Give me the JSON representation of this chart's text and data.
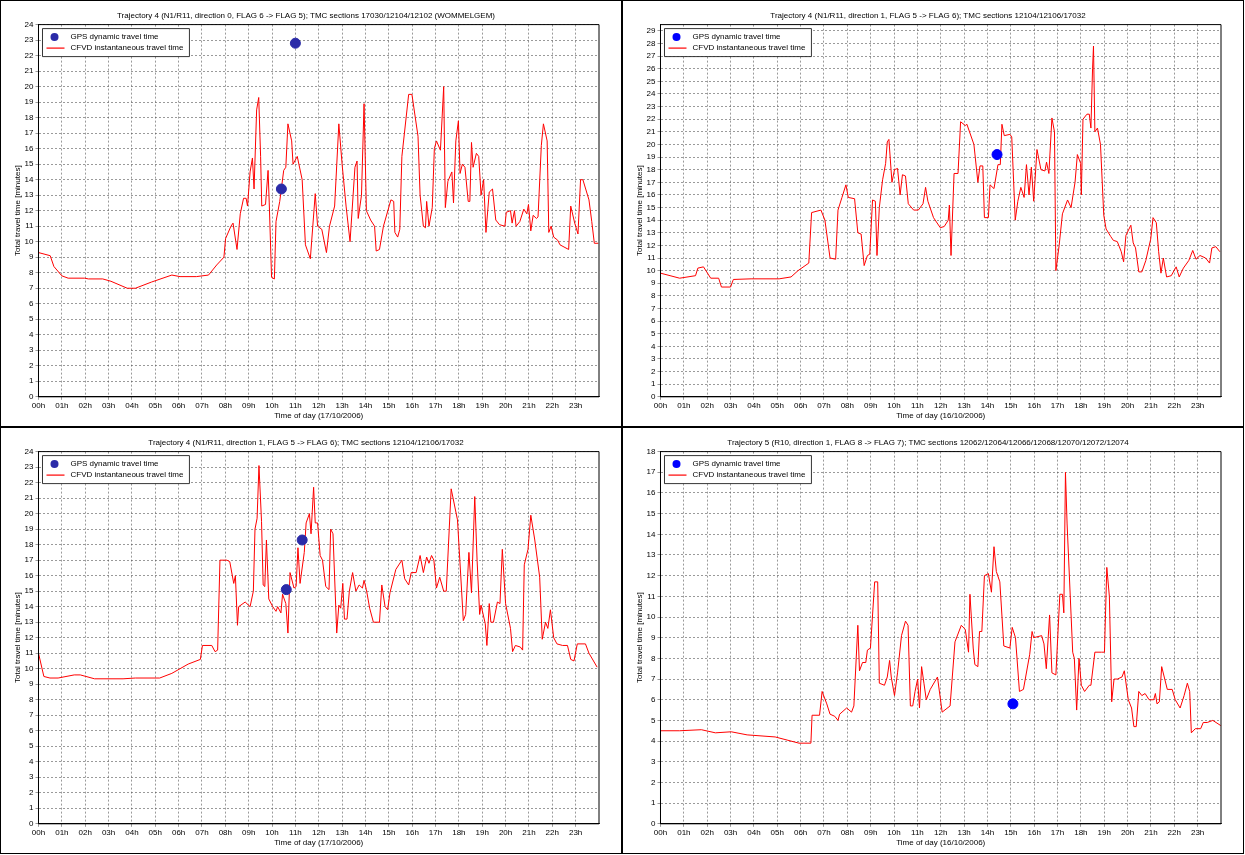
{
  "chart_data": [
    {
      "type": "line",
      "title": "Trajectory 4 (N1/R11, direction 0, FLAG 6 -> FLAG 5); TMC sections 17030/12104/12102 (WOMMELGEM)",
      "xlabel": "Time of day (17/10/2006)",
      "ylabel": "Total travel time [minutes]",
      "xlim": [
        0,
        24
      ],
      "xticks": [
        {
          "value": 0,
          "label": "00h"
        },
        {
          "value": 1,
          "label": "01h"
        },
        {
          "value": 2,
          "label": "02h"
        },
        {
          "value": 3,
          "label": "03h"
        },
        {
          "value": 4,
          "label": "04h"
        },
        {
          "value": 5,
          "label": "05h"
        },
        {
          "value": 6,
          "label": "06h"
        },
        {
          "value": 7,
          "label": "07h"
        },
        {
          "value": 8,
          "label": "08h"
        },
        {
          "value": 9,
          "label": "09h"
        },
        {
          "value": 10,
          "label": "10h"
        },
        {
          "value": 11,
          "label": "11h"
        },
        {
          "value": 12,
          "label": "12h"
        },
        {
          "value": 13,
          "label": "13h"
        },
        {
          "value": 14,
          "label": "14h"
        },
        {
          "value": 15,
          "label": "15h"
        },
        {
          "value": 16,
          "label": "16h"
        },
        {
          "value": 17,
          "label": "17h"
        },
        {
          "value": 18,
          "label": "18h"
        },
        {
          "value": 19,
          "label": "19h"
        },
        {
          "value": 20,
          "label": "20h"
        },
        {
          "value": 21,
          "label": "21h"
        },
        {
          "value": 22,
          "label": "22h"
        },
        {
          "value": 23,
          "label": "23h"
        }
      ],
      "ylim": [
        0,
        24
      ],
      "yticks": [
        0,
        1,
        2,
        3,
        4,
        5,
        6,
        7,
        8,
        9,
        10,
        11,
        12,
        13,
        14,
        15,
        16,
        17,
        18,
        19,
        20,
        21,
        22,
        23,
        24
      ],
      "grid": true,
      "legend": "top left",
      "series": [
        {
          "name": "GPS dynamic travel time",
          "type": "scatter",
          "marker": "circle",
          "color": "#2b2ba8",
          "x": [
            10.4,
            11.0
          ],
          "values": [
            13.4,
            22.8
          ]
        },
        {
          "name": "CFVD instantaneous travel time",
          "type": "line",
          "marker": "none",
          "line_style": "solid",
          "color": "#ff0000",
          "x": [
            0,
            0.5,
            0.66,
            1.0,
            1.27,
            1.97,
            2.14,
            2.75,
            3.1,
            3.8,
            4.15,
            4.84,
            5.71,
            6.06,
            6.76,
            7.28,
            7.63,
            7.94,
            8.01,
            8.24,
            8.33,
            8.5,
            8.64,
            8.78,
            8.89,
            8.95,
            9.06,
            9.16,
            9.23,
            9.34,
            9.43,
            9.51,
            9.56,
            9.72,
            9.83,
            9.88,
            9.98,
            10.1,
            10.17,
            10.33,
            10.5,
            10.59,
            10.68,
            10.84,
            10.9,
            11.08,
            11.29,
            11.43,
            11.64,
            11.85,
            11.95,
            12.13,
            12.33,
            12.46,
            12.68,
            12.86,
            13.0,
            13.17,
            13.34,
            13.55,
            13.64,
            13.69,
            13.83,
            13.94,
            14.04,
            14.22,
            14.39,
            14.46,
            14.6,
            14.77,
            15.09,
            15.21,
            15.26,
            15.38,
            15.47,
            15.56,
            15.85,
            15.99,
            16.25,
            16.34,
            16.48,
            16.57,
            16.62,
            16.72,
            16.86,
            16.95,
            17.04,
            17.21,
            17.35,
            17.42,
            17.53,
            17.7,
            17.77,
            17.87,
            17.98,
            18.05,
            18.15,
            18.26,
            18.4,
            18.47,
            18.54,
            18.61,
            18.75,
            18.85,
            18.95,
            19.06,
            19.16,
            19.3,
            19.44,
            19.58,
            19.74,
            19.97,
            20.03,
            20.21,
            20.28,
            20.38,
            20.45,
            20.61,
            20.78,
            20.91,
            20.98,
            21.08,
            21.18,
            21.32,
            21.39,
            21.53,
            21.62,
            21.78,
            21.85,
            21.95,
            22.06,
            22.23,
            22.33,
            22.7,
            22.79,
            22.96,
            23.1,
            23.21,
            23.31,
            23.57,
            23.69,
            23.8,
            23.97
          ],
          "values": [
            9.3,
            9.1,
            8.4,
            7.8,
            7.65,
            7.65,
            7.6,
            7.6,
            7.45,
            7,
            7,
            7.4,
            7.85,
            7.75,
            7.75,
            7.85,
            8.5,
            9,
            10.2,
            11,
            11.2,
            9.5,
            11.8,
            12.8,
            12.8,
            12.3,
            14.5,
            15.4,
            13.4,
            18.5,
            19.3,
            15.5,
            12.3,
            12.4,
            14.6,
            12.5,
            7.7,
            7.6,
            11.3,
            12.6,
            14.6,
            14.8,
            17.6,
            16.5,
            15,
            15.5,
            14,
            9.8,
            8.9,
            13.1,
            11,
            10.8,
            9.3,
            11,
            12.3,
            17.6,
            15,
            12.3,
            10,
            14.8,
            15.2,
            11.5,
            13,
            18.9,
            12,
            11.4,
            11,
            9.4,
            9.5,
            11,
            12.7,
            12.6,
            10.6,
            10.3,
            10.8,
            15.5,
            19.5,
            19.5,
            16.8,
            13,
            11,
            10.9,
            12.6,
            11,
            12.2,
            16,
            16.5,
            15.9,
            20,
            12.2,
            13.9,
            14.5,
            12.5,
            16.5,
            17.8,
            14.4,
            15,
            14.8,
            12.6,
            12.6,
            16.4,
            14.8,
            15.7,
            15.5,
            13,
            14,
            10.6,
            13.2,
            13.4,
            11.4,
            11.1,
            11,
            11.9,
            12,
            11.2,
            12,
            11,
            11.3,
            12.1,
            11.8,
            12.4,
            10.7,
            11.7,
            11.5,
            11.6,
            16.2,
            17.6,
            16.5,
            10.6,
            11,
            10.3,
            10.1,
            9.8,
            9.5,
            12.3,
            11.2,
            10.5,
            14,
            14,
            12.7,
            11.3,
            9.9,
            9.9
          ]
        }
      ]
    },
    {
      "type": "line",
      "title": "Trajectory 4 (N1/R11, direction 1, FLAG 5 -> FLAG 6); TMC sections 12104/12106/17032",
      "xlabel": "Time of day (16/10/2006)",
      "ylabel": "Total travel time [minutes]",
      "xlim": [
        0,
        24
      ],
      "xticks": [
        {
          "value": 0,
          "label": "00h"
        },
        {
          "value": 1,
          "label": "01h"
        },
        {
          "value": 2,
          "label": "02h"
        },
        {
          "value": 3,
          "label": "03h"
        },
        {
          "value": 4,
          "label": "04h"
        },
        {
          "value": 5,
          "label": "05h"
        },
        {
          "value": 6,
          "label": "06h"
        },
        {
          "value": 7,
          "label": "07h"
        },
        {
          "value": 8,
          "label": "08h"
        },
        {
          "value": 9,
          "label": "09h"
        },
        {
          "value": 10,
          "label": "10h"
        },
        {
          "value": 11,
          "label": "11h"
        },
        {
          "value": 12,
          "label": "12h"
        },
        {
          "value": 13,
          "label": "13h"
        },
        {
          "value": 14,
          "label": "14h"
        },
        {
          "value": 15,
          "label": "15h"
        },
        {
          "value": 16,
          "label": "16h"
        },
        {
          "value": 17,
          "label": "17h"
        },
        {
          "value": 18,
          "label": "18h"
        },
        {
          "value": 19,
          "label": "19h"
        },
        {
          "value": 20,
          "label": "20h"
        },
        {
          "value": 21,
          "label": "21h"
        },
        {
          "value": 22,
          "label": "22h"
        },
        {
          "value": 23,
          "label": "23h"
        }
      ],
      "ylim": [
        0,
        29.5
      ],
      "yticks": [
        0,
        1,
        2,
        3,
        4,
        5,
        6,
        7,
        8,
        9,
        10,
        11,
        12,
        13,
        14,
        15,
        16,
        17,
        18,
        19,
        20,
        21,
        22,
        23,
        24,
        25,
        26,
        27,
        28,
        29
      ],
      "grid": true,
      "legend": "top left",
      "series": [
        {
          "name": "GPS dynamic travel time",
          "type": "scatter",
          "marker": "circle",
          "color": "#0000ff",
          "x": [
            14.41
          ],
          "values": [
            19.2
          ]
        },
        {
          "name": "CFVD instantaneous travel time",
          "type": "line",
          "marker": "none",
          "line_style": "solid",
          "color": "#ff0000",
          "x": [
            0,
            0.82,
            1.5,
            1.6,
            1.84,
            2.15,
            2.49,
            2.61,
            3.0,
            3.12,
            3.88,
            5.08,
            5.59,
            5.89,
            6.35,
            6.47,
            6.87,
            7.04,
            7.26,
            7.5,
            7.6,
            7.77,
            7.94,
            8.04,
            8.31,
            8.45,
            8.59,
            8.72,
            8.86,
            8.96,
            9.08,
            9.2,
            9.27,
            9.37,
            9.51,
            9.64,
            9.71,
            9.78,
            9.91,
            10.02,
            10.15,
            10.26,
            10.36,
            10.49,
            10.61,
            10.84,
            11.04,
            11.24,
            11.35,
            11.45,
            11.69,
            11.98,
            12.15,
            12.32,
            12.37,
            12.44,
            12.57,
            12.74,
            12.85,
            13.05,
            13.12,
            13.42,
            13.59,
            13.68,
            13.8,
            13.87,
            14.04,
            14.11,
            14.28,
            14.45,
            14.55,
            14.62,
            14.72,
            14.96,
            15.04,
            15.19,
            15.3,
            15.43,
            15.57,
            15.67,
            15.78,
            15.88,
            15.98,
            16.12,
            16.29,
            16.46,
            16.53,
            16.63,
            16.76,
            16.87,
            16.93,
            17.07,
            17.21,
            17.43,
            17.58,
            17.75,
            17.85,
            17.99,
            18.02,
            18.09,
            18.26,
            18.36,
            18.43,
            18.5,
            18.54,
            18.6,
            18.71,
            18.84,
            18.98,
            19.08,
            19.28,
            19.39,
            19.56,
            19.73,
            19.83,
            19.93,
            20.14,
            20.24,
            20.34,
            20.48,
            20.61,
            20.78,
            20.99,
            21.09,
            21.23,
            21.33,
            21.43,
            21.53,
            21.67,
            21.87,
            22.08,
            22.21,
            22.39,
            22.62,
            22.79,
            22.93,
            23.1,
            23.34,
            23.51,
            23.61,
            23.78,
            23.95
          ],
          "values": [
            9.8,
            9.4,
            9.6,
            10.2,
            10.3,
            9.4,
            9.4,
            8.7,
            8.7,
            9.3,
            9.35,
            9.35,
            9.5,
            10,
            10.6,
            14.6,
            14.8,
            14,
            11,
            10.9,
            14.8,
            15.8,
            16.8,
            15.8,
            15.7,
            13,
            12.9,
            10.4,
            11.2,
            11.3,
            15.6,
            15.5,
            11.2,
            15,
            17.2,
            18.5,
            20.2,
            20.4,
            17,
            18,
            18.1,
            16,
            17.6,
            17.5,
            15.3,
            14.8,
            14.8,
            15.3,
            16.6,
            15.5,
            14.2,
            13.4,
            13.5,
            14,
            15.2,
            11.2,
            17.7,
            17.7,
            21.8,
            21.5,
            21.6,
            20,
            17,
            18.3,
            18.3,
            14.2,
            14.2,
            16.8,
            16.5,
            18.4,
            18.4,
            21.6,
            20.7,
            20.8,
            20.6,
            14,
            15.5,
            16.6,
            15.8,
            18.4,
            16,
            18.2,
            15.5,
            19.6,
            18,
            17.9,
            18.6,
            17.7,
            22.1,
            21,
            10,
            12,
            14.5,
            15.6,
            15,
            17,
            19.2,
            18.5,
            16,
            22,
            22.4,
            22.4,
            21.3,
            26,
            27.8,
            21,
            21.3,
            20,
            14.4,
            13.3,
            12.7,
            12.4,
            12.3,
            11.5,
            10.7,
            12.8,
            13.6,
            12.2,
            11.8,
            9.9,
            9.9,
            10.8,
            12.5,
            14.2,
            13.8,
            11.5,
            9.8,
            11,
            9.5,
            9.6,
            10.3,
            9.5,
            10.2,
            10.8,
            11.6,
            10.9,
            11.2,
            11,
            10.6,
            11.8,
            11.9,
            11.5
          ]
        }
      ]
    },
    {
      "type": "line",
      "title": "Trajectory 4 (N1/R11, direction 1, FLAG 5 -> FLAG 6); TMC sections 12104/12106/17032",
      "xlabel": "Time of day (17/10/2006)",
      "ylabel": "Total travel time [minutes]",
      "xlim": [
        0,
        24
      ],
      "xticks": [
        {
          "value": 0,
          "label": "00h"
        },
        {
          "value": 1,
          "label": "01h"
        },
        {
          "value": 2,
          "label": "02h"
        },
        {
          "value": 3,
          "label": "03h"
        },
        {
          "value": 4,
          "label": "04h"
        },
        {
          "value": 5,
          "label": "05h"
        },
        {
          "value": 6,
          "label": "06h"
        },
        {
          "value": 7,
          "label": "07h"
        },
        {
          "value": 8,
          "label": "08h"
        },
        {
          "value": 9,
          "label": "09h"
        },
        {
          "value": 10,
          "label": "10h"
        },
        {
          "value": 11,
          "label": "11h"
        },
        {
          "value": 12,
          "label": "12h"
        },
        {
          "value": 13,
          "label": "13h"
        },
        {
          "value": 14,
          "label": "14h"
        },
        {
          "value": 15,
          "label": "15h"
        },
        {
          "value": 16,
          "label": "16h"
        },
        {
          "value": 17,
          "label": "17h"
        },
        {
          "value": 18,
          "label": "18h"
        },
        {
          "value": 19,
          "label": "19h"
        },
        {
          "value": 20,
          "label": "20h"
        },
        {
          "value": 21,
          "label": "21h"
        },
        {
          "value": 22,
          "label": "22h"
        },
        {
          "value": 23,
          "label": "23h"
        }
      ],
      "ylim": [
        0,
        24
      ],
      "yticks": [
        0,
        1,
        2,
        3,
        4,
        5,
        6,
        7,
        8,
        9,
        10,
        11,
        12,
        13,
        14,
        15,
        16,
        17,
        18,
        19,
        20,
        21,
        22,
        23,
        24
      ],
      "grid": true,
      "legend": "top left",
      "series": [
        {
          "name": "GPS dynamic travel time",
          "type": "scatter",
          "marker": "circle",
          "color": "#2b2ba8",
          "x": [
            10.61,
            11.29
          ],
          "values": [
            15.1,
            18.3
          ]
        },
        {
          "name": "CFVD instantaneous travel time",
          "type": "line",
          "marker": "none",
          "line_style": "solid",
          "color": "#ff0000",
          "x": [
            0,
            0.23,
            0.49,
            0.84,
            1.53,
            1.79,
            2.4,
            3.62,
            4.15,
            5.19,
            5.71,
            6.41,
            6.93,
            7.02,
            7.42,
            7.56,
            7.67,
            7.77,
            8.07,
            8.19,
            8.36,
            8.43,
            8.52,
            8.57,
            8.85,
            9.06,
            9.2,
            9.27,
            9.36,
            9.44,
            9.55,
            9.62,
            9.69,
            9.76,
            9.86,
            10.03,
            10.17,
            10.24,
            10.38,
            10.45,
            10.59,
            10.68,
            10.77,
            10.94,
            11.03,
            11.11,
            11.2,
            11.38,
            11.46,
            11.6,
            11.67,
            11.78,
            11.85,
            11.95,
            12.06,
            12.16,
            12.3,
            12.44,
            12.51,
            12.61,
            12.77,
            12.86,
            12.94,
            13.03,
            13.1,
            13.21,
            13.31,
            13.45,
            13.59,
            13.73,
            13.87,
            13.94,
            14.04,
            14.18,
            14.34,
            14.6,
            14.7,
            14.84,
            14.95,
            15.05,
            15.3,
            15.56,
            15.68,
            15.85,
            15.96,
            16.17,
            16.34,
            16.48,
            16.62,
            16.72,
            16.83,
            16.93,
            17.04,
            17.18,
            17.35,
            17.46,
            17.67,
            17.94,
            18.08,
            18.19,
            18.29,
            18.43,
            18.54,
            18.68,
            18.78,
            18.89,
            18.95,
            19.13,
            19.2,
            19.3,
            19.37,
            19.48,
            19.65,
            19.76,
            19.86,
            20.0,
            20.21,
            20.3,
            20.42,
            20.63,
            20.73,
            20.8,
            20.96,
            21.08,
            21.25,
            21.46,
            21.57,
            21.71,
            21.81,
            21.92,
            22.06,
            22.2,
            22.44,
            22.65,
            22.79,
            22.93,
            23.07,
            23.42,
            23.57,
            23.92
          ],
          "values": [
            11,
            9.5,
            9.4,
            9.4,
            9.6,
            9.6,
            9.35,
            9.35,
            9.4,
            9.4,
            9.7,
            10.3,
            10.6,
            11.5,
            11.5,
            11.1,
            11.2,
            17,
            17,
            16.9,
            15.5,
            16,
            12.8,
            14,
            14.3,
            14,
            15,
            19,
            19.7,
            23.1,
            19.5,
            15.4,
            15.3,
            18.3,
            14.5,
            14,
            13.7,
            14,
            13.6,
            14.8,
            14.2,
            12.3,
            16.2,
            15.2,
            15.3,
            17.8,
            15.5,
            17.5,
            19.4,
            20,
            18.7,
            21.7,
            19.4,
            19.4,
            17.3,
            17,
            15.3,
            15.1,
            19,
            18.7,
            12.3,
            14.1,
            13.9,
            15.5,
            13.2,
            13.2,
            15,
            16.2,
            15,
            15.4,
            15.2,
            15.7,
            15.1,
            13.9,
            13,
            13,
            15.4,
            14,
            13.8,
            14.9,
            16.4,
            17,
            15.8,
            15.4,
            16.2,
            16.2,
            17.3,
            16.2,
            17.2,
            16.8,
            17.3,
            17,
            15.2,
            15.9,
            15,
            15,
            21.6,
            19.6,
            16,
            13.1,
            13.5,
            17.5,
            14.9,
            21.1,
            17,
            13.5,
            14.1,
            12.9,
            11.5,
            14.2,
            13,
            13,
            14.3,
            14.2,
            17.7,
            14.2,
            12.6,
            11.1,
            11.5,
            11.4,
            11.2,
            16.7,
            17.7,
            19.9,
            18.3,
            15.9,
            11.9,
            13,
            12.6,
            13.8,
            12,
            11.6,
            11.5,
            11.5,
            10.6,
            10.5,
            11.6,
            11.6,
            11,
            10.1
          ]
        }
      ]
    },
    {
      "type": "line",
      "title": "Trajectory 5 (R10, direction 1, FLAG 8 -> FLAG 7); TMC sections 12062/12064/12066/12068/12070/12072/12074",
      "xlabel": "Time of day (16/10/2006)",
      "ylabel": "Total travel time [minutes]",
      "xlim": [
        0,
        24
      ],
      "xticks": [
        {
          "value": 0,
          "label": "00h"
        },
        {
          "value": 1,
          "label": "01h"
        },
        {
          "value": 2,
          "label": "02h"
        },
        {
          "value": 3,
          "label": "03h"
        },
        {
          "value": 4,
          "label": "04h"
        },
        {
          "value": 5,
          "label": "05h"
        },
        {
          "value": 6,
          "label": "06h"
        },
        {
          "value": 7,
          "label": "07h"
        },
        {
          "value": 8,
          "label": "08h"
        },
        {
          "value": 9,
          "label": "09h"
        },
        {
          "value": 10,
          "label": "10h"
        },
        {
          "value": 11,
          "label": "11h"
        },
        {
          "value": 12,
          "label": "12h"
        },
        {
          "value": 13,
          "label": "13h"
        },
        {
          "value": 14,
          "label": "14h"
        },
        {
          "value": 15,
          "label": "15h"
        },
        {
          "value": 16,
          "label": "16h"
        },
        {
          "value": 17,
          "label": "17h"
        },
        {
          "value": 18,
          "label": "18h"
        },
        {
          "value": 19,
          "label": "19h"
        },
        {
          "value": 20,
          "label": "20h"
        },
        {
          "value": 21,
          "label": "21h"
        },
        {
          "value": 22,
          "label": "22h"
        },
        {
          "value": 23,
          "label": "23h"
        }
      ],
      "ylim": [
        0,
        18
      ],
      "yticks": [
        0,
        1,
        2,
        3,
        4,
        5,
        6,
        7,
        8,
        9,
        10,
        11,
        12,
        13,
        14,
        15,
        16,
        17,
        18
      ],
      "grid": true,
      "legend": "top left",
      "series": [
        {
          "name": "GPS dynamic travel time",
          "type": "scatter",
          "marker": "circle",
          "color": "#0000ff",
          "x": [
            15.09
          ],
          "values": [
            5.8
          ]
        },
        {
          "name": "CFVD instantaneous travel time",
          "type": "line",
          "marker": "none",
          "line_style": "solid",
          "color": "#ff0000",
          "x": [
            0,
            0.82,
            1.75,
            2.35,
            3.03,
            3.71,
            4.91,
            5.42,
            5.93,
            6.44,
            6.49,
            6.81,
            6.92,
            7.12,
            7.26,
            7.46,
            7.6,
            7.67,
            7.97,
            8.18,
            8.28,
            8.45,
            8.52,
            8.65,
            8.79,
            8.86,
            8.99,
            9.17,
            9.3,
            9.37,
            9.59,
            9.71,
            9.81,
            9.88,
            10.02,
            10.15,
            10.32,
            10.49,
            10.6,
            10.7,
            10.8,
            10.9,
            11.01,
            11.09,
            11.18,
            11.28,
            11.38,
            11.55,
            11.86,
            12.06,
            12.4,
            12.61,
            12.88,
            13.05,
            13.19,
            13.25,
            13.39,
            13.46,
            13.59,
            13.66,
            13.76,
            13.87,
            14.04,
            14.17,
            14.28,
            14.38,
            14.53,
            14.7,
            14.96,
            15.06,
            15.2,
            15.37,
            15.54,
            15.81,
            15.91,
            15.98,
            16.32,
            16.42,
            16.52,
            16.66,
            16.76,
            16.93,
            17.1,
            17.21,
            17.27,
            17.34,
            17.41,
            17.65,
            17.72,
            17.82,
            17.92,
            18.02,
            18.16,
            18.36,
            18.43,
            18.6,
            18.88,
            19.01,
            19.11,
            19.22,
            19.32,
            19.42,
            19.56,
            19.76,
            19.86,
            20.03,
            20.17,
            20.27,
            20.37,
            20.48,
            20.61,
            20.75,
            20.92,
            21.12,
            21.19,
            21.26,
            21.36,
            21.46,
            21.7,
            21.91,
            22.04,
            22.25,
            22.42,
            22.56,
            22.66,
            22.73,
            22.9,
            23.13,
            23.24,
            23.41,
            23.65,
            23.99
          ],
          "values": [
            4.5,
            4.5,
            4.55,
            4.4,
            4.45,
            4.3,
            4.2,
            4.05,
            3.9,
            3.9,
            5.25,
            5.25,
            6.4,
            5.8,
            5.3,
            5.2,
            5,
            5.3,
            5.6,
            5.4,
            5.7,
            9.6,
            7.4,
            7.8,
            7.8,
            8.4,
            8.5,
            11.7,
            11.7,
            6.8,
            6.7,
            7.1,
            7.9,
            7.1,
            6.2,
            7.3,
            9.1,
            9.8,
            9.6,
            5.7,
            5.7,
            6.4,
            7,
            5.6,
            7.6,
            6.8,
            6,
            6.5,
            7.1,
            5.4,
            5.7,
            8.8,
            9.6,
            9.4,
            8.3,
            11.1,
            8.5,
            7.7,
            7.6,
            9.3,
            9.3,
            12,
            12.1,
            11.2,
            13.4,
            12.2,
            11.7,
            8.6,
            8.5,
            9.5,
            9,
            6.4,
            6.5,
            8.2,
            9.3,
            9,
            9.1,
            8.7,
            7.5,
            10.1,
            7.3,
            7.2,
            11.1,
            11.1,
            10.2,
            17,
            14.5,
            8.3,
            8,
            5.5,
            8,
            6.7,
            6.4,
            6.7,
            6.7,
            8.3,
            8.3,
            8.3,
            12.4,
            11,
            5.9,
            7,
            7,
            7.1,
            7.4,
            6,
            5.6,
            4.7,
            4.7,
            6.4,
            6.2,
            6.3,
            6,
            6,
            6.3,
            5.8,
            5.9,
            7.6,
            6.5,
            6.5,
            6,
            5.6,
            6.2,
            6.8,
            6.4,
            4.4,
            4.6,
            4.6,
            4.9,
            4.9,
            5,
            4.75
          ]
        }
      ]
    }
  ]
}
